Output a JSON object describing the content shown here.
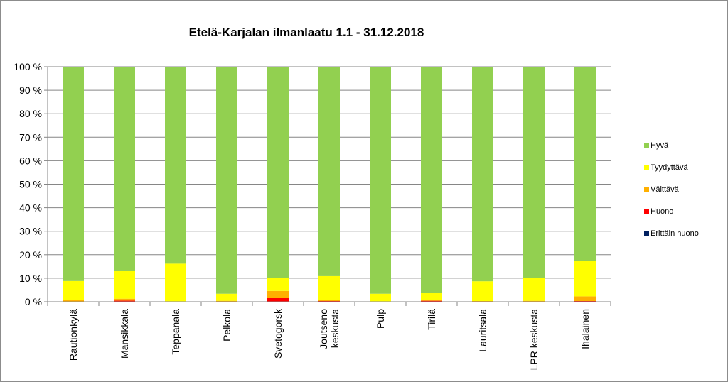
{
  "chart_data": {
    "type": "bar",
    "stacked": true,
    "percent_stacked": true,
    "title": "Etelä-Karjalan ilmanlaatu 1.1 - 31.12.2018",
    "xlabel": "",
    "ylabel": "",
    "ylim": [
      0,
      100
    ],
    "yticks": [
      "0 %",
      "10 %",
      "20 %",
      "30 %",
      "40 %",
      "50 %",
      "60 %",
      "70 %",
      "80 %",
      "90 %",
      "100 %"
    ],
    "grid": "horizontal",
    "legend_position": "right",
    "categories": [
      [
        "Rautionkylä"
      ],
      [
        "Mansikkala"
      ],
      [
        "Teppanala"
      ],
      [
        "Pelkola"
      ],
      [
        "Svetogorsk"
      ],
      [
        "Joutseno",
        "keskusta"
      ],
      [
        "Pulp"
      ],
      [
        "Tirilä"
      ],
      [
        "Lauritsala"
      ],
      [
        "LPR keskusta"
      ],
      [
        "Ihalainen"
      ]
    ],
    "series": [
      {
        "name": "Erittäin huono",
        "color": "#002060",
        "values": [
          0,
          0,
          0,
          0,
          0.1,
          0,
          0,
          0,
          0,
          0,
          0
        ]
      },
      {
        "name": "Huono",
        "color": "#ff0000",
        "values": [
          0,
          0.5,
          0,
          0,
          1.5,
          0.3,
          0,
          0.4,
          0,
          0,
          0.3
        ]
      },
      {
        "name": "Välttävä",
        "color": "#ffb000",
        "values": [
          0.8,
          0.8,
          0.2,
          0.4,
          3.0,
          0.6,
          0.2,
          0.5,
          0.3,
          0.4,
          2.0
        ]
      },
      {
        "name": "Tyydyttävä",
        "color": "#ffff00",
        "values": [
          8.0,
          12.0,
          16.0,
          3.0,
          5.4,
          10.0,
          3.2,
          3.0,
          8.4,
          9.6,
          15.2
        ]
      },
      {
        "name": "Hyvä",
        "color": "#92d050",
        "values": [
          91.2,
          86.7,
          83.8,
          96.6,
          90.0,
          89.1,
          96.6,
          96.1,
          91.3,
          90.0,
          82.5
        ]
      }
    ]
  }
}
